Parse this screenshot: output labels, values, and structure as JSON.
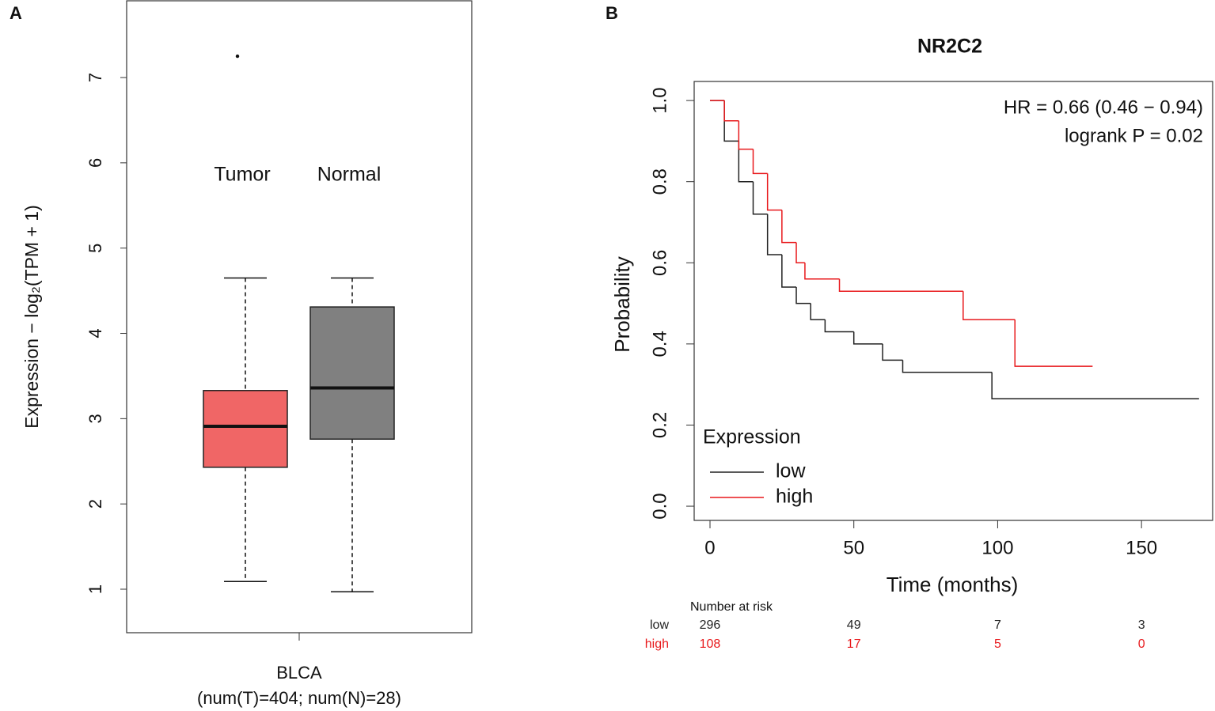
{
  "chart_data": [
    {
      "type": "box",
      "panel": "A",
      "ylabel": "Expression − log₂(TPM + 1)",
      "group_label": "BLCA",
      "xlabel": "(num(T)=404; num(N)=28)",
      "categories": [
        "Tumor",
        "Normal"
      ],
      "boxes": [
        {
          "q1": 2.43,
          "median": 2.91,
          "q3": 3.33,
          "whisker_low": 1.09,
          "whisker_high": 4.65,
          "outliers": [
            7.25
          ],
          "color": "#f06666"
        },
        {
          "q1": 2.76,
          "median": 3.36,
          "q3": 4.31,
          "whisker_low": 0.97,
          "whisker_high": 4.65,
          "outliers": [],
          "color": "#808080"
        }
      ],
      "ylim": [
        0.49,
        7.9
      ],
      "yticks": [
        1,
        2,
        3,
        4,
        5,
        6,
        7
      ]
    },
    {
      "type": "survival",
      "panel": "B",
      "title": "NR2C2",
      "xlabel": "Time (months)",
      "ylabel": "Probability",
      "annotations": [
        "HR = 0.66 (0.46 − 0.94)",
        "logrank P = 0.02"
      ],
      "legend_title": "Expression",
      "legend": "lower left",
      "series": [
        {
          "name": "low",
          "color": "#222222",
          "x": [
            0,
            5,
            10,
            15,
            20,
            25,
            30,
            35,
            40,
            50,
            60,
            67,
            98,
            170
          ],
          "values": [
            1,
            0.9,
            0.8,
            0.72,
            0.62,
            0.54,
            0.5,
            0.46,
            0.43,
            0.4,
            0.36,
            0.33,
            0.265,
            0.265
          ]
        },
        {
          "name": "high",
          "color": "#e8191c",
          "x": [
            0,
            5,
            10,
            15,
            20,
            25,
            30,
            33,
            45,
            88,
            106,
            133
          ],
          "values": [
            1,
            0.95,
            0.88,
            0.82,
            0.73,
            0.65,
            0.6,
            0.56,
            0.53,
            0.46,
            0.345,
            0.345
          ]
        }
      ],
      "xlim": [
        -5.5,
        175
      ],
      "xticks": [
        0,
        50,
        100,
        150
      ],
      "ylim": [
        -0.035,
        1.047
      ],
      "yticks": [
        {
          "value": 0,
          "label": "0.0"
        },
        0.2,
        0.4,
        0.6,
        0.8,
        {
          "value": 1,
          "label": "1.0"
        }
      ],
      "risk_table": {
        "title": "Number at risk",
        "rows": [
          {
            "name": "low",
            "values": [
              296,
              49,
              7,
              3
            ]
          },
          {
            "name": "high",
            "values": [
              108,
              17,
              5,
              0
            ]
          }
        ]
      }
    }
  ]
}
